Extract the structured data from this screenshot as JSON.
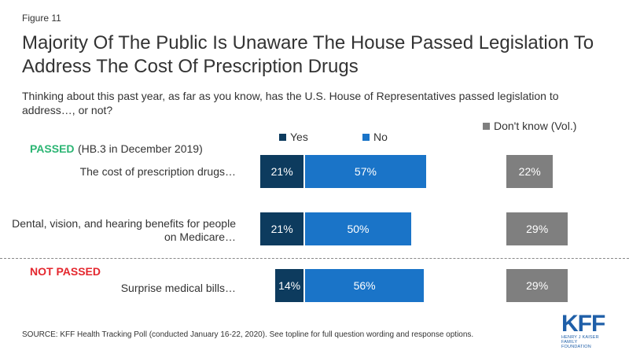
{
  "figure_label": "Figure 11",
  "title": "Majority Of The Public Is Unaware The House Passed Legislation To Address The Cost Of Prescription Drugs",
  "subtitle": "Thinking about this past year, as far as you know, has the U.S. House of Representatives passed legislation to address…, or not?",
  "legend": {
    "yes": "Yes",
    "no": "No",
    "dont_know": "Don't know (Vol.)"
  },
  "groups": {
    "passed": {
      "label": "PASSED",
      "note": "(HB.3 in December 2019)",
      "color": "#2bb573"
    },
    "not_passed": {
      "label": "NOT PASSED",
      "color": "#e4272e"
    }
  },
  "source": "SOURCE: KFF Health Tracking Poll (conducted January 16-22, 2020). See topline for full question wording and response options.",
  "logo": {
    "mark": "KFF",
    "line1": "HENRY J KAISER",
    "line2": "FAMILY FOUNDATION"
  },
  "colors": {
    "yes": "#0d3b5e",
    "no": "#1a74c8",
    "dont_know": "#7f7f7f"
  },
  "chart_data": {
    "type": "bar",
    "orientation": "horizontal",
    "stacked": true,
    "categories": [
      "The cost of prescription drugs…",
      "Dental, vision, and hearing benefits for people on Medicare…",
      "Surprise medical bills…"
    ],
    "series": [
      {
        "name": "Yes",
        "values": [
          21,
          21,
          14
        ],
        "labels": [
          "21%",
          "21%",
          "14%"
        ]
      },
      {
        "name": "No",
        "values": [
          57,
          50,
          56
        ],
        "labels": [
          "57%",
          "50%",
          "56%"
        ]
      },
      {
        "name": "Don't know (Vol.)",
        "values": [
          22,
          29,
          29
        ],
        "labels": [
          "22%",
          "29%",
          "29%"
        ]
      }
    ],
    "xlim": [
      0,
      100
    ],
    "legend_position": "top"
  }
}
